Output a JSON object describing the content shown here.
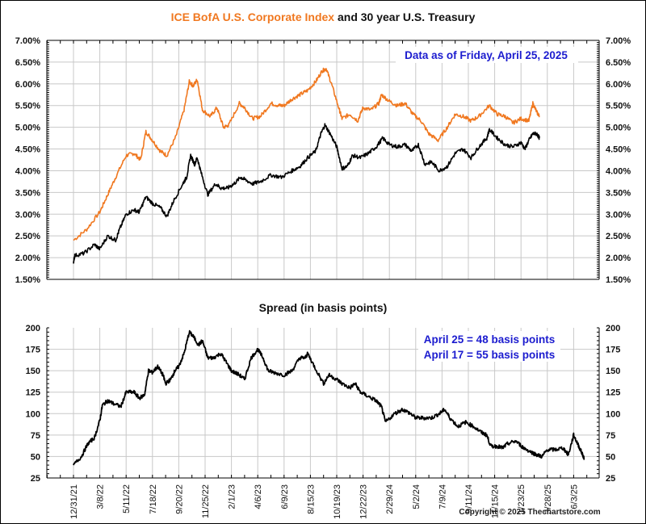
{
  "chart_data": [
    {
      "type": "line",
      "title_parts": [
        {
          "text": "ICE BofA U.S. Corporate Index",
          "color": "#f07820"
        },
        {
          "text": " and 30 year U.S. Treasury",
          "color": "#111111"
        }
      ],
      "annotation": "Data as of Friday, April 25, 2025",
      "xlabel": "",
      "ylabel": "",
      "y_ticks": [
        "7.00%",
        "6.50%",
        "6.00%",
        "5.50%",
        "5.00%",
        "4.50%",
        "4.00%",
        "3.50%",
        "3.00%",
        "2.50%",
        "2.00%",
        "1.50%"
      ],
      "ylim": [
        1.5,
        7.0
      ],
      "grid": true,
      "series": [
        {
          "name": "ICE BofA U.S. Corporate Index",
          "color": "#f07820",
          "points": [
            [
              0,
              2.4
            ],
            [
              0.5,
              2.65
            ],
            [
              1.0,
              3.05
            ],
            [
              1.3,
              3.45
            ],
            [
              1.6,
              3.85
            ],
            [
              2.0,
              4.35
            ],
            [
              2.3,
              4.4
            ],
            [
              2.55,
              4.25
            ],
            [
              2.75,
              4.9
            ],
            [
              3.0,
              4.7
            ],
            [
              3.3,
              4.45
            ],
            [
              3.55,
              4.35
            ],
            [
              3.9,
              4.8
            ],
            [
              4.2,
              5.4
            ],
            [
              4.4,
              6.05
            ],
            [
              4.55,
              5.95
            ],
            [
              4.7,
              6.1
            ],
            [
              4.9,
              5.4
            ],
            [
              5.2,
              5.25
            ],
            [
              5.45,
              5.45
            ],
            [
              5.7,
              5.0
            ],
            [
              5.9,
              5.05
            ],
            [
              6.3,
              5.55
            ],
            [
              6.5,
              5.45
            ],
            [
              6.8,
              5.2
            ],
            [
              7.1,
              5.25
            ],
            [
              7.5,
              5.55
            ],
            [
              7.8,
              5.5
            ],
            [
              8.0,
              5.5
            ],
            [
              8.3,
              5.65
            ],
            [
              8.6,
              5.75
            ],
            [
              8.9,
              5.85
            ],
            [
              9.2,
              6.05
            ],
            [
              9.45,
              6.3
            ],
            [
              9.6,
              6.35
            ],
            [
              9.8,
              6.0
            ],
            [
              10.1,
              5.4
            ],
            [
              10.2,
              5.2
            ],
            [
              10.5,
              5.3
            ],
            [
              10.8,
              5.15
            ],
            [
              11.0,
              5.45
            ],
            [
              11.3,
              5.4
            ],
            [
              11.6,
              5.55
            ],
            [
              11.7,
              5.75
            ],
            [
              12.0,
              5.6
            ],
            [
              12.3,
              5.5
            ],
            [
              12.6,
              5.55
            ],
            [
              12.9,
              5.3
            ],
            [
              13.2,
              5.15
            ],
            [
              13.5,
              4.85
            ],
            [
              13.85,
              4.7
            ],
            [
              14.2,
              5.0
            ],
            [
              14.5,
              5.3
            ],
            [
              14.8,
              5.25
            ],
            [
              15.1,
              5.15
            ],
            [
              15.4,
              5.25
            ],
            [
              15.8,
              5.5
            ],
            [
              16.1,
              5.3
            ],
            [
              16.4,
              5.25
            ],
            [
              16.7,
              5.1
            ],
            [
              17.0,
              5.2
            ],
            [
              17.3,
              5.15
            ],
            [
              17.45,
              5.55
            ],
            [
              17.6,
              5.35
            ],
            [
              17.7,
              5.25
            ]
          ]
        },
        {
          "name": "30 year U.S. Treasury",
          "color": "#000000",
          "points": [
            [
              0,
              1.9
            ],
            [
              0.05,
              2.05
            ],
            [
              0.4,
              2.1
            ],
            [
              0.8,
              2.3
            ],
            [
              1.0,
              2.2
            ],
            [
              1.3,
              2.5
            ],
            [
              1.6,
              2.4
            ],
            [
              1.75,
              2.65
            ],
            [
              2.0,
              3.0
            ],
            [
              2.3,
              3.1
            ],
            [
              2.5,
              3.05
            ],
            [
              2.75,
              3.4
            ],
            [
              3.0,
              3.25
            ],
            [
              3.3,
              3.15
            ],
            [
              3.55,
              2.95
            ],
            [
              3.8,
              3.3
            ],
            [
              4.15,
              3.7
            ],
            [
              4.3,
              3.85
            ],
            [
              4.45,
              4.35
            ],
            [
              4.6,
              4.15
            ],
            [
              4.7,
              4.3
            ],
            [
              4.85,
              3.95
            ],
            [
              5.1,
              3.45
            ],
            [
              5.4,
              3.7
            ],
            [
              5.6,
              3.6
            ],
            [
              5.85,
              3.6
            ],
            [
              6.1,
              3.7
            ],
            [
              6.35,
              3.85
            ],
            [
              6.5,
              3.8
            ],
            [
              6.8,
              3.7
            ],
            [
              7.1,
              3.75
            ],
            [
              7.5,
              3.9
            ],
            [
              7.9,
              3.85
            ],
            [
              8.3,
              4.0
            ],
            [
              8.6,
              4.1
            ],
            [
              8.9,
              4.3
            ],
            [
              9.2,
              4.45
            ],
            [
              9.4,
              4.85
            ],
            [
              9.55,
              5.05
            ],
            [
              9.75,
              4.85
            ],
            [
              10.0,
              4.55
            ],
            [
              10.2,
              4.05
            ],
            [
              10.4,
              4.1
            ],
            [
              10.6,
              4.35
            ],
            [
              10.9,
              4.3
            ],
            [
              11.2,
              4.4
            ],
            [
              11.5,
              4.55
            ],
            [
              11.75,
              4.75
            ],
            [
              12.0,
              4.6
            ],
            [
              12.3,
              4.55
            ],
            [
              12.6,
              4.6
            ],
            [
              12.85,
              4.45
            ],
            [
              13.1,
              4.6
            ],
            [
              13.35,
              4.15
            ],
            [
              13.6,
              4.2
            ],
            [
              13.9,
              4.0
            ],
            [
              14.2,
              4.1
            ],
            [
              14.5,
              4.4
            ],
            [
              14.8,
              4.5
            ],
            [
              15.1,
              4.3
            ],
            [
              15.4,
              4.55
            ],
            [
              15.7,
              4.75
            ],
            [
              15.8,
              4.95
            ],
            [
              16.1,
              4.75
            ],
            [
              16.4,
              4.6
            ],
            [
              16.7,
              4.55
            ],
            [
              17.0,
              4.65
            ],
            [
              17.15,
              4.5
            ],
            [
              17.3,
              4.7
            ],
            [
              17.45,
              4.85
            ],
            [
              17.6,
              4.85
            ],
            [
              17.7,
              4.75
            ]
          ]
        }
      ]
    },
    {
      "type": "line",
      "title": "Spread (in basis points)",
      "annotations": [
        "April 25 = 48 basis points",
        "April 17 = 55 basis points"
      ],
      "xlabel": "",
      "ylabel": "",
      "y_ticks": [
        "200",
        "175",
        "150",
        "125",
        "100",
        "75",
        "50",
        "25"
      ],
      "ylim": [
        25,
        200
      ],
      "grid": true,
      "categories": [
        "12/31/21",
        "3/8/22",
        "5/11/22",
        "7/18/22",
        "9/20/22",
        "11/25/22",
        "2/1/23",
        "4/6/23",
        "6/9/23",
        "8/15/23",
        "10/19/23",
        "12/22/23",
        "2/29/24",
        "5/2/24",
        "7/9/24",
        "9/11/24",
        "11/15/24",
        "1/23/25",
        "3/28/25",
        "6/3/25"
      ],
      "series": [
        {
          "name": "Spread",
          "color": "#000000",
          "points": [
            [
              0,
              40
            ],
            [
              0.3,
              50
            ],
            [
              0.55,
              65
            ],
            [
              0.8,
              72
            ],
            [
              1.0,
              92
            ],
            [
              1.1,
              110
            ],
            [
              1.3,
              115
            ],
            [
              1.5,
              112
            ],
            [
              1.8,
              108
            ],
            [
              2.0,
              125
            ],
            [
              2.3,
              125
            ],
            [
              2.5,
              118
            ],
            [
              2.7,
              122
            ],
            [
              2.85,
              150
            ],
            [
              3.0,
              148
            ],
            [
              3.2,
              155
            ],
            [
              3.4,
              145
            ],
            [
              3.5,
              135
            ],
            [
              3.7,
              140
            ],
            [
              3.85,
              150
            ],
            [
              4.0,
              155
            ],
            [
              4.2,
              170
            ],
            [
              4.4,
              195
            ],
            [
              4.55,
              190
            ],
            [
              4.75,
              180
            ],
            [
              4.9,
              185
            ],
            [
              5.1,
              165
            ],
            [
              5.3,
              165
            ],
            [
              5.6,
              170
            ],
            [
              5.8,
              160
            ],
            [
              6.0,
              150
            ],
            [
              6.3,
              145
            ],
            [
              6.5,
              140
            ],
            [
              6.75,
              165
            ],
            [
              7.0,
              175
            ],
            [
              7.2,
              165
            ],
            [
              7.4,
              150
            ],
            [
              7.6,
              148
            ],
            [
              8.0,
              145
            ],
            [
              8.3,
              150
            ],
            [
              8.6,
              165
            ],
            [
              8.8,
              165
            ],
            [
              8.9,
              170
            ],
            [
              9.15,
              155
            ],
            [
              9.5,
              135
            ],
            [
              9.7,
              145
            ],
            [
              10.0,
              140
            ],
            [
              10.2,
              135
            ],
            [
              10.5,
              130
            ],
            [
              10.7,
              135
            ],
            [
              10.9,
              125
            ],
            [
              11.2,
              120
            ],
            [
              11.5,
              115
            ],
            [
              11.7,
              108
            ],
            [
              11.85,
              90
            ],
            [
              12.2,
              100
            ],
            [
              12.5,
              105
            ],
            [
              12.8,
              100
            ],
            [
              13.0,
              95
            ],
            [
              13.3,
              95
            ],
            [
              13.6,
              95
            ],
            [
              13.9,
              100
            ],
            [
              14.1,
              105
            ],
            [
              14.3,
              95
            ],
            [
              14.6,
              85
            ],
            [
              14.9,
              90
            ],
            [
              15.2,
              85
            ],
            [
              15.5,
              78
            ],
            [
              15.7,
              75
            ],
            [
              15.85,
              62
            ],
            [
              16.1,
              62
            ],
            [
              16.3,
              60
            ],
            [
              16.5,
              65
            ],
            [
              16.8,
              68
            ],
            [
              17.1,
              60
            ],
            [
              17.4,
              55
            ],
            [
              17.6,
              52
            ],
            [
              17.8,
              50
            ],
            [
              18.0,
              58
            ],
            [
              18.3,
              58
            ],
            [
              18.6,
              60
            ],
            [
              18.8,
              52
            ],
            [
              19.0,
              75
            ],
            [
              19.15,
              65
            ],
            [
              19.3,
              55
            ],
            [
              19.4,
              48
            ]
          ]
        }
      ]
    }
  ],
  "footer": {
    "copyright": "Copyright © 2025 Thechartstore.com"
  }
}
